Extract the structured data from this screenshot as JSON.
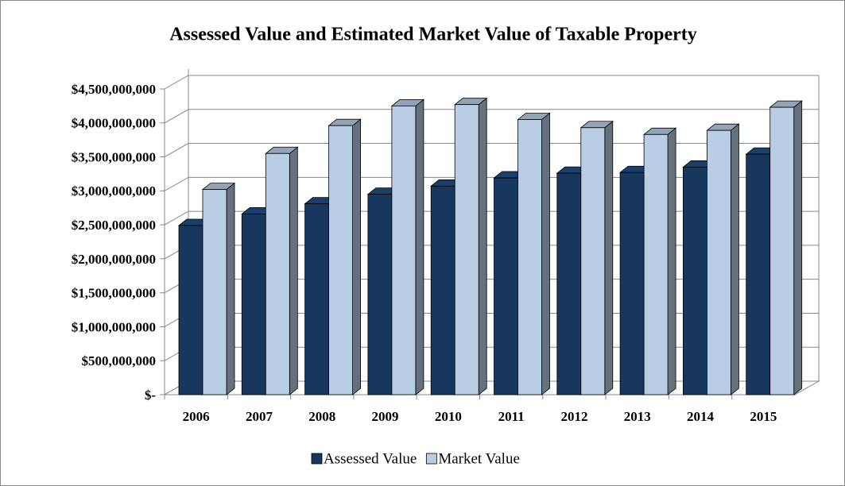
{
  "chart_data": {
    "type": "bar3d",
    "title": "Assessed Value and Estimated Market Value of Taxable Property",
    "categories": [
      "2006",
      "2007",
      "2008",
      "2009",
      "2010",
      "2011",
      "2012",
      "2013",
      "2014",
      "2015"
    ],
    "series": [
      {
        "name": "Assessed Value",
        "color": "#17375e",
        "values": [
          2490000000,
          2660000000,
          2810000000,
          2950000000,
          3070000000,
          3190000000,
          3260000000,
          3270000000,
          3350000000,
          3540000000
        ]
      },
      {
        "name": "Market Value",
        "color": "#b9cde5",
        "values": [
          3020000000,
          3550000000,
          3960000000,
          4250000000,
          4270000000,
          4050000000,
          3930000000,
          3830000000,
          3890000000,
          4230000000
        ]
      }
    ],
    "ylim": [
      0,
      4500000000
    ],
    "yticks": [
      {
        "value": 0,
        "label": "$-"
      },
      {
        "value": 500000000,
        "label": "$500,000,000"
      },
      {
        "value": 1000000000,
        "label": "$1,000,000,000"
      },
      {
        "value": 1500000000,
        "label": "$1,500,000,000"
      },
      {
        "value": 2000000000,
        "label": "$2,000,000,000"
      },
      {
        "value": 2500000000,
        "label": "$2,500,000,000"
      },
      {
        "value": 3000000000,
        "label": "$3,000,000,000"
      },
      {
        "value": 3500000000,
        "label": "$3,500,000,000"
      },
      {
        "value": 4000000000,
        "label": "$4,000,000,000"
      },
      {
        "value": 4500000000,
        "label": "$4,500,000,000"
      }
    ],
    "grid": true,
    "legend": "bottom"
  }
}
